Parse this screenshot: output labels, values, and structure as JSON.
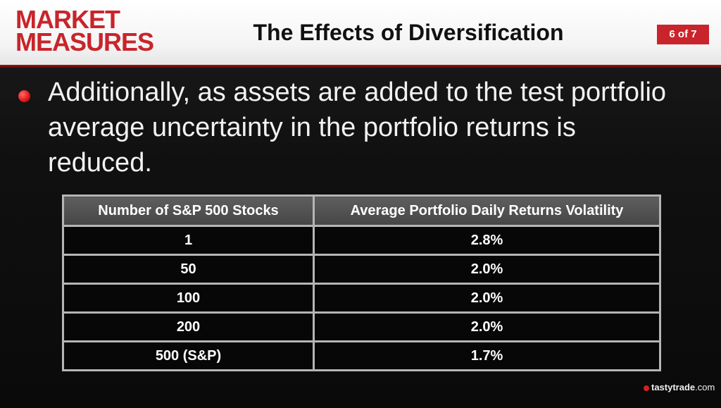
{
  "header": {
    "logo_line1": "MARKET",
    "logo_line2": "MEASURES",
    "title": "The Effects of Diversification",
    "page_indicator": "6 of 7"
  },
  "bullet": {
    "text": "Additionally, as assets are added to the test portfolio average uncertainty in the portfolio returns is reduced."
  },
  "table": {
    "headers": [
      "Number of S&P 500 Stocks",
      "Average Portfolio Daily Returns Volatility"
    ],
    "rows": [
      [
        "1",
        "2.8%"
      ],
      [
        "50",
        "2.0%"
      ],
      [
        "100",
        "2.0%"
      ],
      [
        "200",
        "2.0%"
      ],
      [
        "500 (S&P)",
        "1.7%"
      ]
    ]
  },
  "footer": {
    "brand": "tastytrade",
    "suffix": ".com"
  },
  "colors": {
    "accent_red": "#c9242b",
    "header_bg": "#f4f4f4",
    "table_header_bg": "#555555",
    "table_border": "#b5b5b5"
  }
}
